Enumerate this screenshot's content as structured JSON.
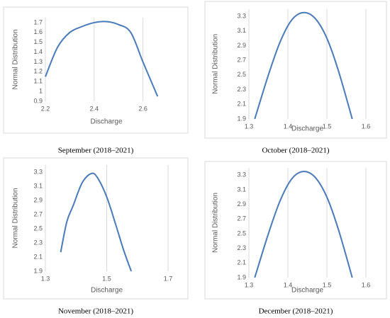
{
  "chart_data": [
    {
      "type": "line",
      "caption": "September (2018–2021)",
      "xlabel": "Discharge",
      "ylabel": "Normal Distribution",
      "color": "#4a7ab8",
      "grid": "x",
      "x": [
        2.2,
        2.25,
        2.3,
        2.35,
        2.4,
        2.45,
        2.5,
        2.55,
        2.6,
        2.66
      ],
      "values": [
        1.15,
        1.45,
        1.6,
        1.66,
        1.7,
        1.71,
        1.68,
        1.6,
        1.3,
        0.95
      ],
      "xlim": [
        2.2,
        2.7
      ],
      "xticks": [
        2.2,
        2.4,
        2.6
      ],
      "ylim": [
        0.9,
        1.75
      ],
      "yticks": [
        0.9,
        1,
        1.1,
        1.2,
        1.3,
        1.4,
        1.5,
        1.6,
        1.7
      ]
    },
    {
      "type": "line",
      "caption": "October (2018–2021)",
      "xlabel": "Discharge",
      "ylabel": "Normal Distribution",
      "color": "#4a7ab8",
      "grid": "x",
      "x": [
        1.315,
        1.35,
        1.38,
        1.41,
        1.44,
        1.47,
        1.5,
        1.53,
        1.565
      ],
      "values": [
        1.9,
        2.5,
        2.95,
        3.25,
        3.35,
        3.27,
        3.0,
        2.55,
        1.9
      ],
      "xlim": [
        1.3,
        1.6
      ],
      "xticks": [
        1.3,
        1.4,
        1.5,
        1.6
      ],
      "ylim": [
        1.9,
        3.4
      ],
      "yticks": [
        1.9,
        2.1,
        2.3,
        2.5,
        2.7,
        2.9,
        3.1,
        3.3
      ]
    },
    {
      "type": "line",
      "caption": "November (2018–2021)",
      "xlabel": "Discharge",
      "ylabel": "Normal Distribution",
      "color": "#4a7ab8",
      "grid": "x",
      "x": [
        1.35,
        1.37,
        1.39,
        1.42,
        1.45,
        1.47,
        1.5,
        1.53,
        1.555,
        1.58
      ],
      "values": [
        2.17,
        2.6,
        2.82,
        3.15,
        3.28,
        3.22,
        2.95,
        2.55,
        2.2,
        1.9
      ],
      "xlim": [
        1.3,
        1.7
      ],
      "xticks": [
        1.3,
        1.5,
        1.7
      ],
      "ylim": [
        1.9,
        3.4
      ],
      "yticks": [
        1.9,
        2.1,
        2.3,
        2.5,
        2.7,
        2.9,
        3.1,
        3.3
      ]
    },
    {
      "type": "line",
      "caption": "December (2018–2021)",
      "xlabel": "Discharge",
      "ylabel": "Normal Distribution",
      "color": "#4a7ab8",
      "grid": "x",
      "x": [
        1.315,
        1.35,
        1.38,
        1.41,
        1.44,
        1.47,
        1.5,
        1.53,
        1.565
      ],
      "values": [
        1.9,
        2.5,
        2.95,
        3.25,
        3.35,
        3.27,
        3.0,
        2.55,
        1.9
      ],
      "xlim": [
        1.3,
        1.6
      ],
      "xticks": [
        1.3,
        1.4,
        1.5,
        1.6
      ],
      "ylim": [
        1.9,
        3.4
      ],
      "yticks": [
        1.9,
        2.1,
        2.3,
        2.5,
        2.7,
        2.9,
        3.1,
        3.3
      ]
    }
  ]
}
